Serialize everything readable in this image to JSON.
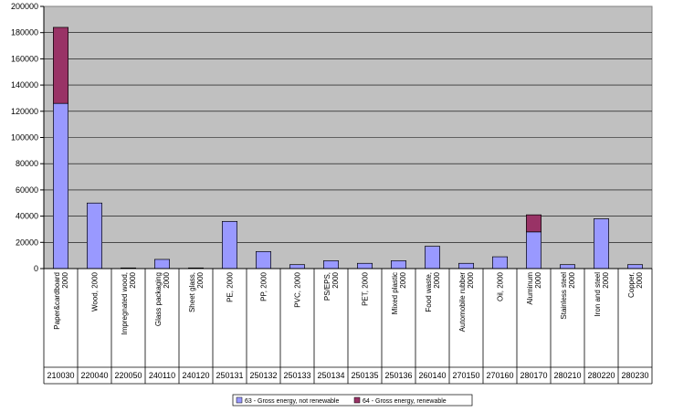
{
  "chart_data": {
    "type": "bar",
    "stacked": true,
    "categories": [
      "Paper&cardboard 2000",
      "Wood, 2000",
      "Impregnated wood, 2000",
      "Glass packaging 2000",
      "Sheet glass, 2000",
      "PE, 2000",
      "PP, 2000",
      "PVC, 2000",
      "PS/EPS, 2000",
      "PET, 2000",
      "Mixed plastic 2000",
      "Food waste, 2000",
      "Automobile rubber 2000",
      "Oil, 2000",
      "Aluminum 2000",
      "Stainless steel 2000",
      "Iron and steel 2000",
      "Copper, 2000"
    ],
    "codes": [
      "210030",
      "220040",
      "220050",
      "240110",
      "240120",
      "250131",
      "250132",
      "250133",
      "250134",
      "250135",
      "250136",
      "260140",
      "270150",
      "270160",
      "280170",
      "280210",
      "280220",
      "280230"
    ],
    "series": [
      {
        "name": "63 - Gross energy, not renewable",
        "color": "#9999ff",
        "values": [
          126000,
          50000,
          500,
          7000,
          500,
          36000,
          13000,
          3000,
          6000,
          4000,
          6000,
          17000,
          4000,
          9000,
          28000,
          3000,
          38000,
          3000
        ]
      },
      {
        "name": "64 - Gross energy, renewable",
        "color": "#993366",
        "values": [
          58000,
          0,
          0,
          0,
          0,
          0,
          0,
          0,
          0,
          0,
          0,
          0,
          0,
          0,
          13000,
          0,
          0,
          0
        ]
      }
    ],
    "ylim": [
      0,
      200000
    ],
    "yticks": [
      "0",
      "20000",
      "40000",
      "60000",
      "80000",
      "100000",
      "120000",
      "140000",
      "160000",
      "180000",
      "200000"
    ],
    "plot_background": "#c0c0c0",
    "grid": true,
    "legend_position": "bottom"
  }
}
